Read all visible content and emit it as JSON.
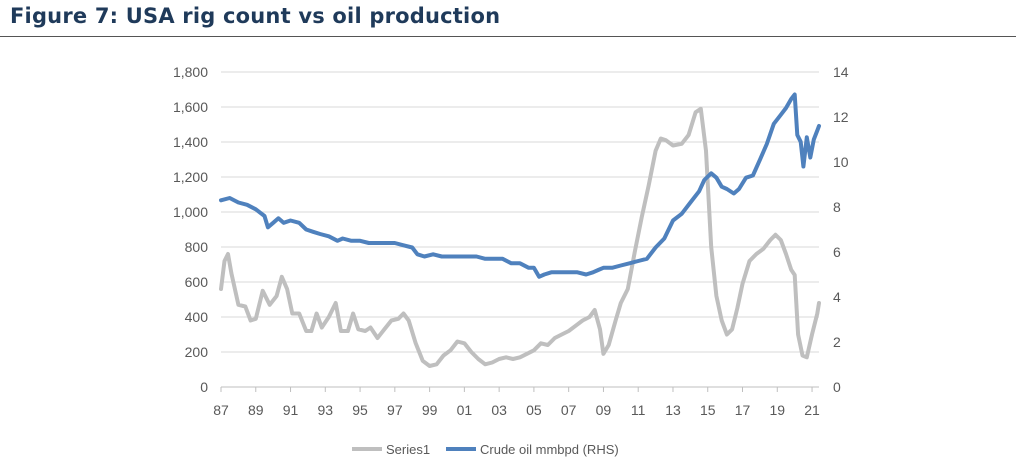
{
  "figure": {
    "title": "Figure 7: USA rig count vs oil production"
  },
  "chart_data": {
    "type": "line",
    "title": "",
    "x_ticks": [
      "87",
      "89",
      "91",
      "93",
      "95",
      "97",
      "99",
      "01",
      "03",
      "05",
      "07",
      "09",
      "11",
      "13",
      "15",
      "17",
      "19",
      "21"
    ],
    "x_range": [
      1987,
      2021.4
    ],
    "y_left": {
      "min": 0,
      "max": 1800,
      "ticks": [
        "0",
        "200",
        "400",
        "600",
        "800",
        "1,000",
        "1,200",
        "1,400",
        "1,600",
        "1,800"
      ]
    },
    "y_right": {
      "min": 0,
      "max": 14,
      "ticks": [
        "0",
        "2",
        "4",
        "6",
        "8",
        "10",
        "12",
        "14"
      ]
    },
    "grid": "horizontal",
    "legend_position": "bottom",
    "series": [
      {
        "name": "Series1",
        "axis": "left",
        "color": "#bfbfbf",
        "points": [
          [
            1987.0,
            560
          ],
          [
            1987.2,
            720
          ],
          [
            1987.4,
            760
          ],
          [
            1987.6,
            650
          ],
          [
            1988.0,
            470
          ],
          [
            1988.4,
            460
          ],
          [
            1988.7,
            380
          ],
          [
            1989.0,
            390
          ],
          [
            1989.4,
            550
          ],
          [
            1989.8,
            470
          ],
          [
            1990.2,
            520
          ],
          [
            1990.5,
            630
          ],
          [
            1990.8,
            560
          ],
          [
            1991.1,
            420
          ],
          [
            1991.5,
            420
          ],
          [
            1991.9,
            320
          ],
          [
            1992.2,
            320
          ],
          [
            1992.5,
            420
          ],
          [
            1992.8,
            340
          ],
          [
            1993.2,
            400
          ],
          [
            1993.6,
            480
          ],
          [
            1993.9,
            320
          ],
          [
            1994.3,
            320
          ],
          [
            1994.6,
            420
          ],
          [
            1994.9,
            330
          ],
          [
            1995.3,
            320
          ],
          [
            1995.6,
            340
          ],
          [
            1996.0,
            280
          ],
          [
            1996.4,
            330
          ],
          [
            1996.8,
            380
          ],
          [
            1997.2,
            390
          ],
          [
            1997.5,
            420
          ],
          [
            1997.8,
            380
          ],
          [
            1998.2,
            250
          ],
          [
            1998.6,
            150
          ],
          [
            1999.0,
            120
          ],
          [
            1999.4,
            130
          ],
          [
            1999.8,
            180
          ],
          [
            2000.2,
            210
          ],
          [
            2000.6,
            260
          ],
          [
            2001.0,
            250
          ],
          [
            2001.4,
            200
          ],
          [
            2001.8,
            160
          ],
          [
            2002.2,
            130
          ],
          [
            2002.6,
            140
          ],
          [
            2003.0,
            160
          ],
          [
            2003.4,
            170
          ],
          [
            2003.8,
            160
          ],
          [
            2004.2,
            170
          ],
          [
            2004.6,
            190
          ],
          [
            2005.0,
            210
          ],
          [
            2005.4,
            250
          ],
          [
            2005.8,
            240
          ],
          [
            2006.2,
            280
          ],
          [
            2006.6,
            300
          ],
          [
            2007.0,
            320
          ],
          [
            2007.4,
            350
          ],
          [
            2007.8,
            380
          ],
          [
            2008.2,
            400
          ],
          [
            2008.5,
            440
          ],
          [
            2008.8,
            330
          ],
          [
            2009.0,
            190
          ],
          [
            2009.3,
            240
          ],
          [
            2009.7,
            380
          ],
          [
            2010.0,
            480
          ],
          [
            2010.4,
            560
          ],
          [
            2010.8,
            770
          ],
          [
            2011.2,
            970
          ],
          [
            2011.6,
            1150
          ],
          [
            2012.0,
            1350
          ],
          [
            2012.3,
            1420
          ],
          [
            2012.6,
            1410
          ],
          [
            2013.0,
            1380
          ],
          [
            2013.5,
            1390
          ],
          [
            2013.9,
            1440
          ],
          [
            2014.3,
            1570
          ],
          [
            2014.6,
            1590
          ],
          [
            2014.9,
            1350
          ],
          [
            2015.2,
            800
          ],
          [
            2015.5,
            520
          ],
          [
            2015.8,
            380
          ],
          [
            2016.1,
            300
          ],
          [
            2016.4,
            330
          ],
          [
            2016.7,
            450
          ],
          [
            2017.0,
            590
          ],
          [
            2017.4,
            720
          ],
          [
            2017.8,
            760
          ],
          [
            2018.2,
            790
          ],
          [
            2018.6,
            840
          ],
          [
            2018.9,
            870
          ],
          [
            2019.2,
            840
          ],
          [
            2019.5,
            760
          ],
          [
            2019.8,
            670
          ],
          [
            2020.0,
            640
          ],
          [
            2020.2,
            300
          ],
          [
            2020.45,
            180
          ],
          [
            2020.7,
            170
          ],
          [
            2021.0,
            300
          ],
          [
            2021.3,
            420
          ],
          [
            2021.4,
            480
          ]
        ]
      },
      {
        "name": "Crude oil mmbpd (RHS)",
        "axis": "right",
        "color": "#4f81bd",
        "points": [
          [
            1987.0,
            8.3
          ],
          [
            1987.5,
            8.4
          ],
          [
            1988.0,
            8.2
          ],
          [
            1988.5,
            8.1
          ],
          [
            1989.0,
            7.9
          ],
          [
            1989.5,
            7.6
          ],
          [
            1989.7,
            7.1
          ],
          [
            1990.0,
            7.3
          ],
          [
            1990.3,
            7.5
          ],
          [
            1990.6,
            7.3
          ],
          [
            1991.0,
            7.4
          ],
          [
            1991.5,
            7.3
          ],
          [
            1991.9,
            7.0
          ],
          [
            1992.3,
            6.9
          ],
          [
            1992.7,
            6.8
          ],
          [
            1993.2,
            6.7
          ],
          [
            1993.7,
            6.5
          ],
          [
            1994.0,
            6.6
          ],
          [
            1994.5,
            6.5
          ],
          [
            1995.0,
            6.5
          ],
          [
            1995.5,
            6.4
          ],
          [
            1996.0,
            6.4
          ],
          [
            1996.5,
            6.4
          ],
          [
            1997.0,
            6.4
          ],
          [
            1997.5,
            6.3
          ],
          [
            1998.0,
            6.2
          ],
          [
            1998.3,
            5.9
          ],
          [
            1998.7,
            5.8
          ],
          [
            1999.2,
            5.9
          ],
          [
            1999.7,
            5.8
          ],
          [
            2000.2,
            5.8
          ],
          [
            2000.7,
            5.8
          ],
          [
            2001.2,
            5.8
          ],
          [
            2001.7,
            5.8
          ],
          [
            2002.2,
            5.7
          ],
          [
            2002.7,
            5.7
          ],
          [
            2003.2,
            5.7
          ],
          [
            2003.7,
            5.5
          ],
          [
            2004.2,
            5.5
          ],
          [
            2004.7,
            5.3
          ],
          [
            2005.0,
            5.3
          ],
          [
            2005.3,
            4.9
          ],
          [
            2005.6,
            5.0
          ],
          [
            2006.0,
            5.1
          ],
          [
            2006.5,
            5.1
          ],
          [
            2007.0,
            5.1
          ],
          [
            2007.5,
            5.1
          ],
          [
            2008.0,
            5.0
          ],
          [
            2008.4,
            5.1
          ],
          [
            2008.7,
            5.2
          ],
          [
            2009.0,
            5.3
          ],
          [
            2009.5,
            5.3
          ],
          [
            2010.0,
            5.4
          ],
          [
            2010.5,
            5.5
          ],
          [
            2011.0,
            5.6
          ],
          [
            2011.5,
            5.7
          ],
          [
            2012.0,
            6.2
          ],
          [
            2012.5,
            6.6
          ],
          [
            2013.0,
            7.4
          ],
          [
            2013.5,
            7.7
          ],
          [
            2014.0,
            8.2
          ],
          [
            2014.5,
            8.7
          ],
          [
            2014.8,
            9.2
          ],
          [
            2015.2,
            9.5
          ],
          [
            2015.5,
            9.3
          ],
          [
            2015.8,
            8.9
          ],
          [
            2016.1,
            8.8
          ],
          [
            2016.5,
            8.6
          ],
          [
            2016.8,
            8.8
          ],
          [
            2017.2,
            9.3
          ],
          [
            2017.6,
            9.4
          ],
          [
            2018.0,
            10.1
          ],
          [
            2018.4,
            10.8
          ],
          [
            2018.8,
            11.7
          ],
          [
            2019.2,
            12.1
          ],
          [
            2019.5,
            12.4
          ],
          [
            2019.8,
            12.8
          ],
          [
            2020.0,
            13.0
          ],
          [
            2020.15,
            11.2
          ],
          [
            2020.35,
            10.9
          ],
          [
            2020.5,
            9.8
          ],
          [
            2020.7,
            11.1
          ],
          [
            2020.9,
            10.2
          ],
          [
            2021.1,
            11.0
          ],
          [
            2021.3,
            11.4
          ],
          [
            2021.4,
            11.6
          ]
        ]
      }
    ],
    "legend": [
      "Series1",
      "Crude oil mmbpd (RHS)"
    ]
  }
}
